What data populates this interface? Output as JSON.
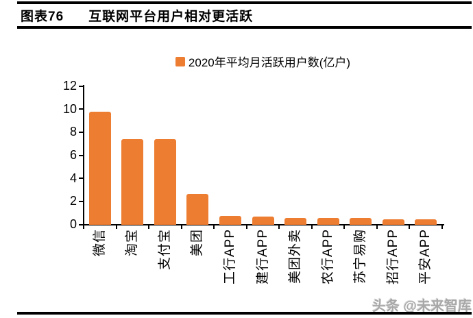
{
  "figure": {
    "label": "图表76",
    "title": "互联网平台用户相对更活跃"
  },
  "watermark": "头条 @未来智库",
  "colors": {
    "bar": "#ED7D31",
    "rule": "#000000",
    "axis": "#000000",
    "watermark_gray": "#a8a8a8"
  },
  "chart_data": {
    "type": "bar",
    "title": "",
    "legend": [
      "2020年平均月活跃用户数(亿户)"
    ],
    "legend_position": "top-center",
    "categories": [
      "微信",
      "淘宝",
      "支付宝",
      "美团",
      "工行APP",
      "建行APP",
      "美团外卖",
      "农行APP",
      "苏宁易购",
      "招行APP",
      "平安APP"
    ],
    "values": [
      9.8,
      7.4,
      7.4,
      2.7,
      0.8,
      0.7,
      0.6,
      0.6,
      0.6,
      0.5,
      0.5
    ],
    "xlabel": "",
    "ylabel": "",
    "ylim": [
      0,
      12
    ],
    "yticks": [
      0,
      2,
      4,
      6,
      8,
      10,
      12
    ],
    "grid": false,
    "bar_color": "#ED7D31",
    "x_label_rotation": -90
  }
}
